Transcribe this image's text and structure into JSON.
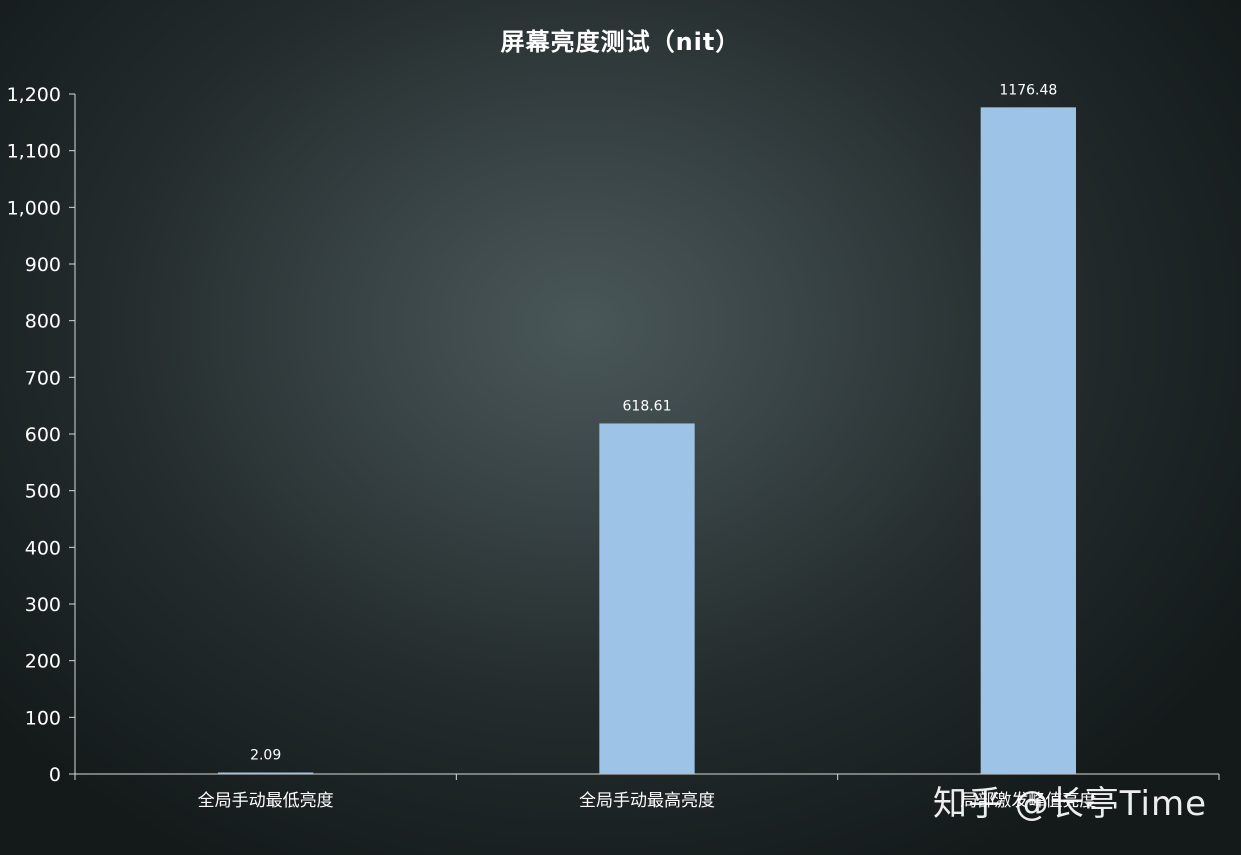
{
  "chart_data": {
    "type": "bar",
    "title": "屏幕亮度测试（nit）",
    "xlabel": "",
    "ylabel": "",
    "categories": [
      "全局手动最低亮度",
      "全局手动最高亮度",
      "局部激发峰值亮度"
    ],
    "values": [
      2.09,
      618.61,
      1176.48
    ],
    "data_labels": [
      "2.09",
      "618.61",
      "1176.48"
    ],
    "ylim": [
      0,
      1200
    ],
    "yticks": [
      0,
      100,
      200,
      300,
      400,
      500,
      600,
      700,
      800,
      900,
      1000,
      1100,
      1200
    ],
    "ytick_labels": [
      "0",
      "100",
      "200",
      "300",
      "400",
      "500",
      "600",
      "700",
      "800",
      "900",
      "1,000",
      "1,100",
      "1,200"
    ],
    "grid": false,
    "legend": "none",
    "bar_color": "#9dc3e6",
    "axis_color": "#d9d9d9"
  },
  "watermark": {
    "text": "知乎 @长亭Time"
  }
}
